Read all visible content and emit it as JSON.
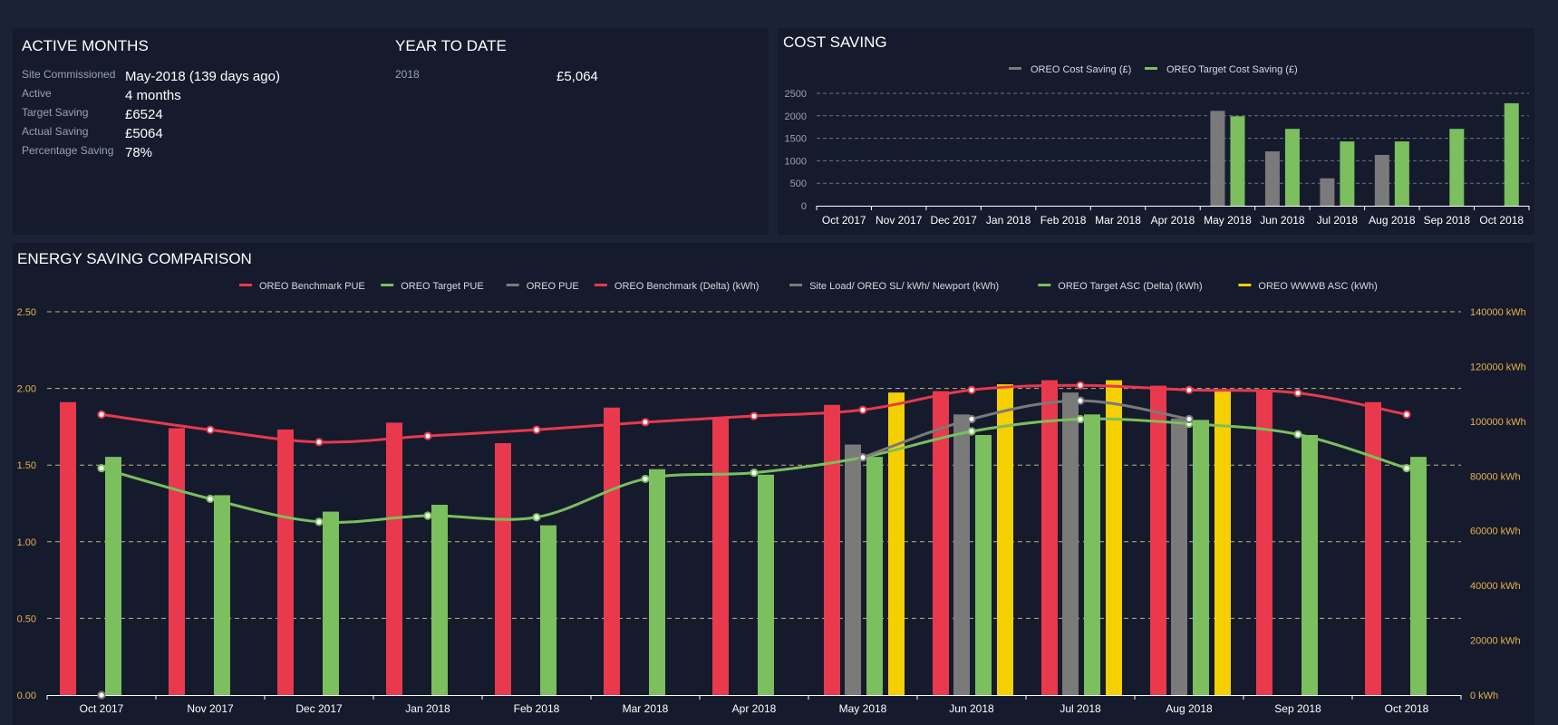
{
  "active_months": {
    "title": "ACTIVE MONTHS",
    "rows": [
      {
        "label": "Site Commissioned",
        "value": "May-2018 (139 days ago)"
      },
      {
        "label": "Active",
        "value": "4 months"
      },
      {
        "label": "Target Saving",
        "value": "£6524"
      },
      {
        "label": "Actual Saving",
        "value": "£5064"
      },
      {
        "label": "Percentage Saving",
        "value": "78%"
      }
    ]
  },
  "year_to_date": {
    "title": "YEAR TO DATE",
    "year": "2018",
    "value": "£5,064"
  },
  "cost_saving": {
    "title": "COST SAVING"
  },
  "energy_saving": {
    "title": "ENERGY SAVING COMPARISON"
  },
  "colors": {
    "red": "#e8394d",
    "green": "#7bbf5e",
    "gray": "#7a7a7a",
    "yellow": "#f5d000",
    "axis_orange": "#e8b04a",
    "grid": "#8a8f9c"
  },
  "chart_data": [
    {
      "type": "bar",
      "title": "COST SAVING",
      "categories": [
        "Oct 2017",
        "Nov 2017",
        "Dec 2017",
        "Jan 2018",
        "Feb 2018",
        "Mar 2018",
        "Apr 2018",
        "May 2018",
        "Jun 2018",
        "Jul 2018",
        "Aug 2018",
        "Sep 2018",
        "Oct 2018"
      ],
      "yticks": [
        "0",
        "500",
        "1000",
        "1500",
        "2000",
        "2500"
      ],
      "ylim": [
        0,
        2500
      ],
      "legend_position": "top-center",
      "grid": true,
      "series": [
        {
          "name": "OREO Cost Saving (£)",
          "color": "#7a7a7a",
          "values": [
            null,
            null,
            null,
            null,
            null,
            null,
            null,
            2110,
            1210,
            610,
            1130,
            null,
            null
          ]
        },
        {
          "name": "OREO Target Cost Saving (£)",
          "color": "#7bbf5e",
          "values": [
            null,
            null,
            null,
            null,
            null,
            null,
            null,
            1990,
            1710,
            1430,
            1430,
            1710,
            2280
          ]
        }
      ]
    },
    {
      "type": "bar",
      "title": "ENERGY SAVING COMPARISON",
      "categories": [
        "Oct 2017",
        "Nov 2017",
        "Dec 2017",
        "Jan 2018",
        "Feb 2018",
        "Mar 2018",
        "Apr 2018",
        "May 2018",
        "Jun 2018",
        "Jul 2018",
        "Aug 2018",
        "Sep 2018",
        "Oct 2018"
      ],
      "yticks_left": [
        "0.00",
        "0.50",
        "1.00",
        "1.50",
        "2.00",
        "2.50"
      ],
      "ylim_left": [
        0,
        2.5
      ],
      "yticks_right": [
        "0 kWh",
        "20000 kWh",
        "40000 kWh",
        "60000 kWh",
        "80000 kWh",
        "100000 kWh",
        "120000 kWh",
        "140000 kWh"
      ],
      "ylim_right": [
        0,
        140000
      ],
      "legend_position": "top-center",
      "grid": true,
      "series": [
        {
          "name": "OREO Benchmark PUE",
          "kind": "line",
          "axis": "left",
          "color": "#e8394d",
          "values": [
            1.83,
            1.73,
            1.65,
            1.69,
            1.73,
            1.78,
            1.82,
            1.86,
            1.99,
            2.02,
            1.99,
            1.97,
            1.83
          ]
        },
        {
          "name": "OREO Target PUE",
          "kind": "line",
          "axis": "left",
          "color": "#7bbf5e",
          "values": [
            1.48,
            1.28,
            1.13,
            1.17,
            1.16,
            1.41,
            1.45,
            1.55,
            1.72,
            1.8,
            1.77,
            1.7,
            1.48
          ]
        },
        {
          "name": "OREO PUE",
          "kind": "line",
          "axis": "left",
          "color": "#7a7a7a",
          "values": [
            0,
            null,
            null,
            null,
            null,
            null,
            null,
            1.55,
            1.8,
            1.92,
            1.8,
            null,
            null
          ]
        },
        {
          "name": "OREO Benchmark (Delta) (kWh)",
          "kind": "bar",
          "axis": "right",
          "color": "#e8394d",
          "values": [
            107000,
            97500,
            97000,
            99500,
            92000,
            105000,
            101000,
            106000,
            111000,
            115000,
            113000,
            111000,
            107000
          ]
        },
        {
          "name": "Site Load/ OREO SL/ kWh/ Newport (kWh)",
          "kind": "bar",
          "axis": "right",
          "color": "#7a7a7a",
          "values": [
            null,
            null,
            null,
            null,
            null,
            null,
            null,
            91500,
            102500,
            110500,
            101000,
            null,
            null
          ]
        },
        {
          "name": "OREO Target ASC (Delta) (kWh)",
          "kind": "bar",
          "axis": "right",
          "color": "#7bbf5e",
          "values": [
            87000,
            73000,
            67000,
            69500,
            62000,
            82500,
            80500,
            87000,
            95000,
            102500,
            100500,
            95000,
            87000
          ]
        },
        {
          "name": "OREO WWWB ASC (kWh)",
          "kind": "bar",
          "axis": "right",
          "color": "#f5d000",
          "values": [
            null,
            null,
            null,
            null,
            null,
            null,
            null,
            110500,
            113500,
            115000,
            111500,
            null,
            null
          ]
        }
      ]
    }
  ]
}
